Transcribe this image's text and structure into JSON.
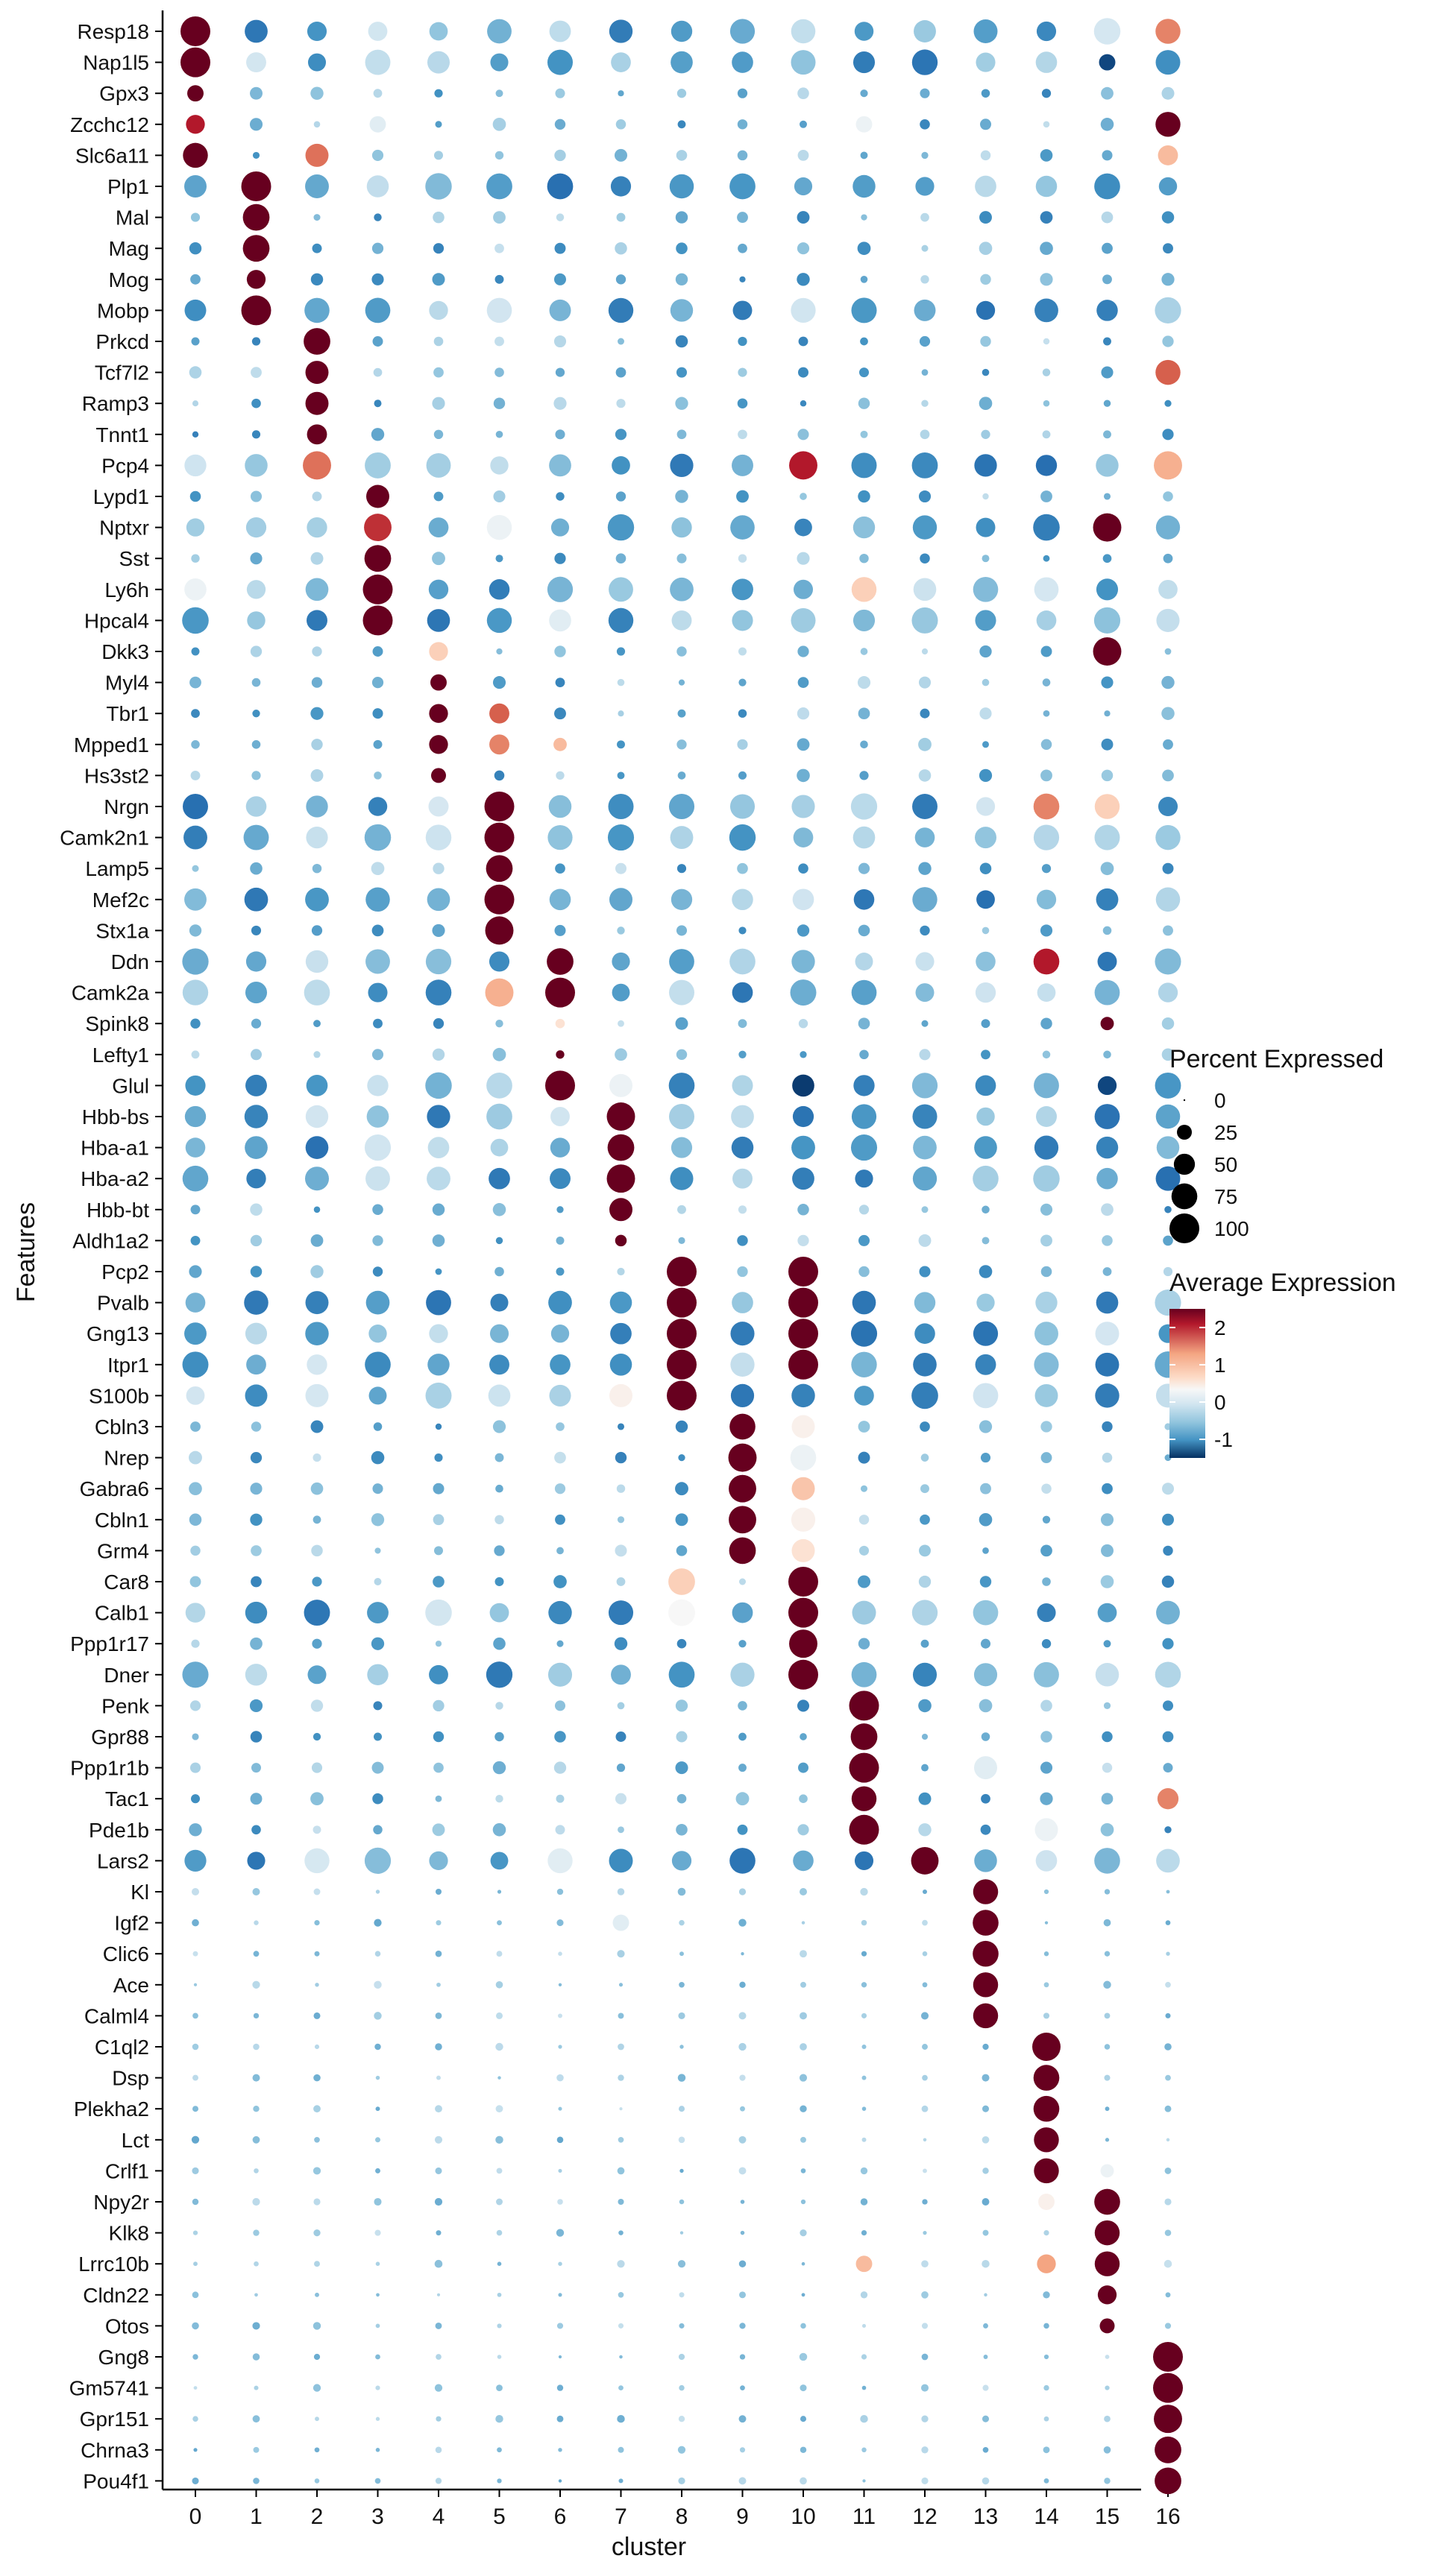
{
  "chart_data": {
    "type": "dotplot",
    "xlabel": "cluster",
    "ylabel": "Features",
    "x_categories": [
      "0",
      "1",
      "2",
      "3",
      "4",
      "5",
      "6",
      "7",
      "8",
      "9",
      "10",
      "11",
      "12",
      "13",
      "14",
      "15",
      "16"
    ],
    "features": [
      "Resp18",
      "Nap1l5",
      "Gpx3",
      "Zcchc12",
      "Slc6a11",
      "Plp1",
      "Mal",
      "Mag",
      "Mog",
      "Mobp",
      "Prkcd",
      "Tcf7l2",
      "Ramp3",
      "Tnnt1",
      "Pcp4",
      "Lypd1",
      "Nptxr",
      "Sst",
      "Ly6h",
      "Hpcal4",
      "Dkk3",
      "Myl4",
      "Tbr1",
      "Mpped1",
      "Hs3st2",
      "Nrgn",
      "Camk2n1",
      "Lamp5",
      "Mef2c",
      "Stx1a",
      "Ddn",
      "Camk2a",
      "Spink8",
      "Lefty1",
      "Glul",
      "Hbb-bs",
      "Hba-a1",
      "Hba-a2",
      "Hbb-bt",
      "Aldh1a2",
      "Pcp2",
      "Pvalb",
      "Gng13",
      "Itpr1",
      "S100b",
      "Cbln3",
      "Nrep",
      "Gabra6",
      "Cbln1",
      "Grm4",
      "Car8",
      "Calb1",
      "Ppp1r17",
      "Dner",
      "Penk",
      "Gpr88",
      "Ppp1r1b",
      "Tac1",
      "Pde1b",
      "Lars2",
      "Kl",
      "Igf2",
      "Clic6",
      "Ace",
      "Calml4",
      "C1ql2",
      "Dsp",
      "Plekha2",
      "Lct",
      "Crlf1",
      "Npy2r",
      "Klk8",
      "Lrrc10b",
      "Cldn22",
      "Otos",
      "Gng8",
      "Gm5741",
      "Gpr151",
      "Chrna3",
      "Pou4f1"
    ],
    "marker_clusters": [
      0,
      0,
      0,
      0,
      0,
      1,
      1,
      1,
      1,
      1,
      2,
      2,
      2,
      2,
      2,
      3,
      3,
      3,
      3,
      3,
      4,
      4,
      4,
      4,
      4,
      5,
      5,
      5,
      5,
      5,
      6,
      6,
      6,
      6,
      6,
      7,
      7,
      7,
      7,
      7,
      8,
      8,
      8,
      8,
      8,
      9,
      9,
      9,
      9,
      9,
      10,
      10,
      10,
      10,
      11,
      11,
      11,
      11,
      11,
      12,
      13,
      13,
      13,
      13,
      13,
      14,
      14,
      14,
      14,
      14,
      15,
      15,
      15,
      15,
      15,
      16,
      16,
      16,
      16,
      16
    ],
    "highlight_values": {
      "Resp18": [
        [
          0,
          100,
          2.5
        ],
        [
          16,
          70,
          1.8
        ]
      ],
      "Nap1l5": [
        [
          0,
          100,
          2.5
        ],
        [
          15,
          30,
          -1.3
        ]
      ],
      "Gpx3": [
        [
          0,
          30,
          2.5
        ]
      ],
      "Zcchc12": [
        [
          0,
          40,
          2.3
        ],
        [
          3,
          30,
          0.5
        ],
        [
          11,
          30,
          0.6
        ],
        [
          16,
          70,
          2.5
        ]
      ],
      "Slc6a11": [
        [
          0,
          70,
          2.5
        ],
        [
          2,
          60,
          1.9
        ],
        [
          16,
          45,
          1.4
        ]
      ],
      "Plp1": [
        [
          1,
          100,
          2.5
        ]
      ],
      "Mal": [
        [
          1,
          80,
          2.5
        ]
      ],
      "Mag": [
        [
          1,
          80,
          2.5
        ]
      ],
      "Mog": [
        [
          1,
          40,
          2.5
        ]
      ],
      "Mobp": [
        [
          1,
          100,
          2.5
        ]
      ],
      "Prkcd": [
        [
          2,
          80,
          2.5
        ]
      ],
      "Tcf7l2": [
        [
          2,
          60,
          2.5
        ],
        [
          16,
          70,
          2.0
        ]
      ],
      "Ramp3": [
        [
          2,
          60,
          2.5
        ]
      ],
      "Tnnt1": [
        [
          2,
          45,
          2.5
        ]
      ],
      "Pcp4": [
        [
          2,
          90,
          1.9
        ],
        [
          10,
          90,
          2.3
        ],
        [
          16,
          90,
          1.5
        ]
      ],
      "Lypd1": [
        [
          3,
          60,
          2.5
        ]
      ],
      "Nptxr": [
        [
          3,
          85,
          2.2
        ],
        [
          5,
          70,
          0.6
        ],
        [
          15,
          90,
          2.5
        ]
      ],
      "Sst": [
        [
          3,
          80,
          2.5
        ]
      ],
      "Ly6h": [
        [
          3,
          100,
          2.5
        ],
        [
          0,
          55,
          0.6
        ],
        [
          11,
          70,
          1.2
        ]
      ],
      "Hpcal4": [
        [
          3,
          100,
          2.5
        ],
        [
          6,
          55,
          0.5
        ]
      ],
      "Dkk3": [
        [
          4,
          40,
          1.2
        ],
        [
          15,
          90,
          2.5
        ]
      ],
      "Myl4": [
        [
          4,
          30,
          2.5
        ]
      ],
      "Tbr1": [
        [
          4,
          40,
          2.5
        ],
        [
          5,
          45,
          2.0
        ]
      ],
      "Mpped1": [
        [
          4,
          40,
          2.5
        ],
        [
          5,
          45,
          1.8
        ],
        [
          6,
          20,
          1.4
        ]
      ],
      "Hs3st2": [
        [
          4,
          25,
          2.5
        ]
      ],
      "Nrgn": [
        [
          5,
          100,
          2.5
        ],
        [
          14,
          75,
          1.8
        ],
        [
          15,
          70,
          1.2
        ]
      ],
      "Camk2n1": [
        [
          5,
          100,
          2.5
        ]
      ],
      "Lamp5": [
        [
          5,
          80,
          2.5
        ]
      ],
      "Mef2c": [
        [
          5,
          100,
          2.5
        ]
      ],
      "Stx1a": [
        [
          5,
          90,
          2.5
        ]
      ],
      "Ddn": [
        [
          6,
          80,
          2.5
        ],
        [
          14,
          75,
          2.3
        ]
      ],
      "Camk2a": [
        [
          6,
          100,
          2.5
        ],
        [
          5,
          90,
          1.5
        ]
      ],
      "Spink8": [
        [
          6,
          10,
          1.0
        ],
        [
          15,
          20,
          2.5
        ]
      ],
      "Lefty1": [
        [
          6,
          8,
          2.5
        ]
      ],
      "Glul": [
        [
          6,
          100,
          2.5
        ],
        [
          7,
          60,
          0.6
        ],
        [
          10,
          55,
          -1.4
        ],
        [
          15,
          40,
          -1.3
        ]
      ],
      "Hbb-bs": [
        [
          7,
          90,
          2.5
        ]
      ],
      "Hba-a1": [
        [
          7,
          80,
          2.5
        ]
      ],
      "Hba-a2": [
        [
          7,
          90,
          2.5
        ]
      ],
      "Hbb-bt": [
        [
          7,
          60,
          2.5
        ]
      ],
      "Aldh1a2": [
        [
          7,
          15,
          2.5
        ]
      ],
      "Pcp2": [
        [
          8,
          100,
          2.5
        ],
        [
          10,
          100,
          2.5
        ]
      ],
      "Pvalb": [
        [
          8,
          100,
          2.5
        ],
        [
          10,
          100,
          2.5
        ]
      ],
      "Gng13": [
        [
          8,
          100,
          2.5
        ],
        [
          10,
          100,
          2.5
        ]
      ],
      "Itpr1": [
        [
          8,
          100,
          2.5
        ],
        [
          10,
          100,
          2.5
        ]
      ],
      "S100b": [
        [
          8,
          100,
          2.5
        ],
        [
          7,
          60,
          0.8
        ]
      ],
      "Cbln3": [
        [
          9,
          75,
          2.5
        ],
        [
          10,
          60,
          0.8
        ]
      ],
      "Nrep": [
        [
          9,
          90,
          2.5
        ],
        [
          10,
          75,
          0.6
        ]
      ],
      "Gabra6": [
        [
          9,
          85,
          2.5
        ],
        [
          10,
          60,
          1.3
        ]
      ],
      "Cbln1": [
        [
          9,
          85,
          2.5
        ],
        [
          10,
          65,
          0.8
        ]
      ],
      "Grm4": [
        [
          9,
          80,
          2.5
        ],
        [
          10,
          60,
          1.0
        ]
      ],
      "Car8": [
        [
          10,
          100,
          2.5
        ],
        [
          8,
          80,
          1.2
        ]
      ],
      "Calb1": [
        [
          10,
          100,
          2.5
        ],
        [
          8,
          80,
          0.7
        ]
      ],
      "Ppp1r17": [
        [
          10,
          90,
          2.5
        ]
      ],
      "Dner": [
        [
          10,
          100,
          2.5
        ]
      ],
      "Penk": [
        [
          11,
          100,
          2.5
        ]
      ],
      "Gpr88": [
        [
          11,
          80,
          2.5
        ]
      ],
      "Ppp1r1b": [
        [
          11,
          100,
          2.5
        ],
        [
          13,
          60,
          0.5
        ]
      ],
      "Tac1": [
        [
          11,
          70,
          2.5
        ],
        [
          16,
          50,
          1.8
        ]
      ],
      "Pde1b": [
        [
          11,
          100,
          2.5
        ],
        [
          14,
          60,
          0.6
        ]
      ],
      "Lars2": [
        [
          12,
          85,
          2.5
        ],
        [
          6,
          70,
          0.5
        ],
        [
          2,
          70,
          0.4
        ]
      ],
      "Kl": [
        [
          13,
          70,
          2.5
        ]
      ],
      "Igf2": [
        [
          13,
          75,
          2.5
        ],
        [
          7,
          30,
          0.5
        ]
      ],
      "Clic6": [
        [
          13,
          75,
          2.5
        ]
      ],
      "Ace": [
        [
          13,
          70,
          2.5
        ]
      ],
      "Calml4": [
        [
          13,
          70,
          2.5
        ]
      ],
      "C1ql2": [
        [
          14,
          90,
          2.5
        ]
      ],
      "Dsp": [
        [
          14,
          75,
          2.5
        ]
      ],
      "Plekha2": [
        [
          14,
          75,
          2.5
        ]
      ],
      "Lct": [
        [
          14,
          70,
          2.5
        ]
      ],
      "Crlf1": [
        [
          14,
          70,
          2.5
        ],
        [
          15,
          20,
          0.6
        ]
      ],
      "Npy2r": [
        [
          15,
          75,
          2.5
        ],
        [
          14,
          30,
          0.8
        ]
      ],
      "Klk8": [
        [
          15,
          70,
          2.5
        ]
      ],
      "Lrrc10b": [
        [
          15,
          70,
          2.5
        ],
        [
          11,
          30,
          1.4
        ],
        [
          14,
          40,
          1.6
        ]
      ],
      "Cldn22": [
        [
          15,
          40,
          2.5
        ]
      ],
      "Otos": [
        [
          15,
          25,
          2.5
        ]
      ],
      "Gng8": [
        [
          16,
          100,
          2.5
        ]
      ],
      "Gm5741": [
        [
          16,
          100,
          2.5
        ]
      ],
      "Gpr151": [
        [
          16,
          90,
          2.5
        ]
      ],
      "Chrna3": [
        [
          16,
          80,
          2.5
        ]
      ],
      "Pou4f1": [
        [
          16,
          80,
          2.5
        ]
      ]
    },
    "legend_size": {
      "title": "Percent Expressed",
      "breaks": [
        0,
        25,
        50,
        75,
        100
      ],
      "labels": [
        "0",
        "25",
        "50",
        "75",
        "100"
      ]
    },
    "legend_color": {
      "title": "Average Expression",
      "breaks": [
        2,
        1,
        0,
        -1
      ],
      "labels": [
        "2",
        "1",
        "0",
        "-1"
      ],
      "low_color": "#053061",
      "mid_color": "#f7f7f7",
      "high_color": "#67001f"
    },
    "grid": false,
    "legend_position": "right"
  }
}
